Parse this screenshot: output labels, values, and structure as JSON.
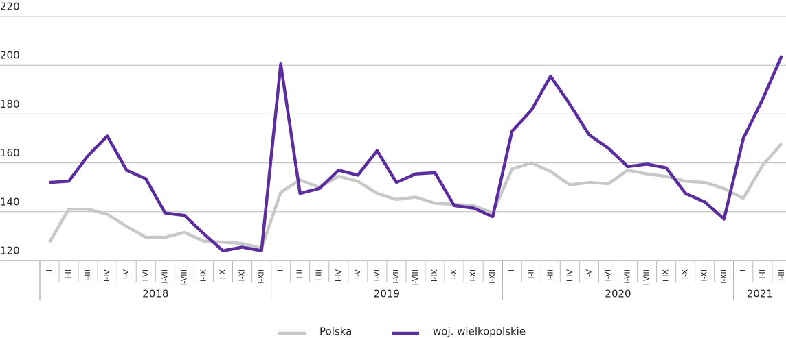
{
  "chart_data": {
    "type": "line",
    "categories": [
      "I",
      "I-II",
      "I-III",
      "I-IV",
      "I-V",
      "I-VI",
      "I-VII",
      "I-VIII",
      "I-IX",
      "I-X",
      "I-XI",
      "I-XII",
      "I",
      "I-II",
      "I-III",
      "I-IV",
      "I-V",
      "I-VI",
      "I-VII",
      "I-VIII",
      "I-IX",
      "I-X",
      "I-XI",
      "I-XII",
      "I",
      "I-II",
      "I-III",
      "I-IV",
      "I-V",
      "I-VI",
      "I-VII",
      "I-VIII",
      "I-IX",
      "I-X",
      "I-XI",
      "I-XII",
      "I",
      "I-II",
      "I-III"
    ],
    "groups": [
      {
        "label": "2018",
        "count": 12
      },
      {
        "label": "2019",
        "count": 12
      },
      {
        "label": "2020",
        "count": 12
      },
      {
        "label": "2021",
        "count": 3
      }
    ],
    "series": [
      {
        "name": "Polska",
        "color": "#c8c8c8",
        "values": [
          127.5,
          141,
          141,
          139,
          134,
          129.5,
          129.5,
          131.5,
          128,
          127.5,
          127,
          125,
          148,
          153,
          150,
          154.5,
          152.5,
          147.5,
          145,
          146,
          143.5,
          143,
          142.5,
          139.5,
          157.5,
          160,
          156.5,
          151,
          152,
          151.5,
          157,
          155.5,
          154.5,
          152.5,
          152,
          149.5,
          145.5,
          159,
          168
        ]
      },
      {
        "name": "woj. wielkopolskie",
        "color": "#5b2d9d",
        "values": [
          152,
          152.5,
          163,
          171,
          157,
          153.5,
          139.5,
          138.5,
          131,
          124,
          125.5,
          124,
          200.5,
          147.5,
          149.5,
          157,
          155,
          165,
          152,
          155.5,
          156,
          142.5,
          141.5,
          138,
          173,
          181.5,
          195.5,
          184,
          171.5,
          166,
          158.5,
          159.5,
          158,
          147.5,
          144,
          137,
          170,
          186,
          204
        ]
      }
    ],
    "ylim": [
      120,
      220
    ],
    "yticks": [
      120,
      140,
      160,
      180,
      200,
      220
    ],
    "grid": true
  }
}
